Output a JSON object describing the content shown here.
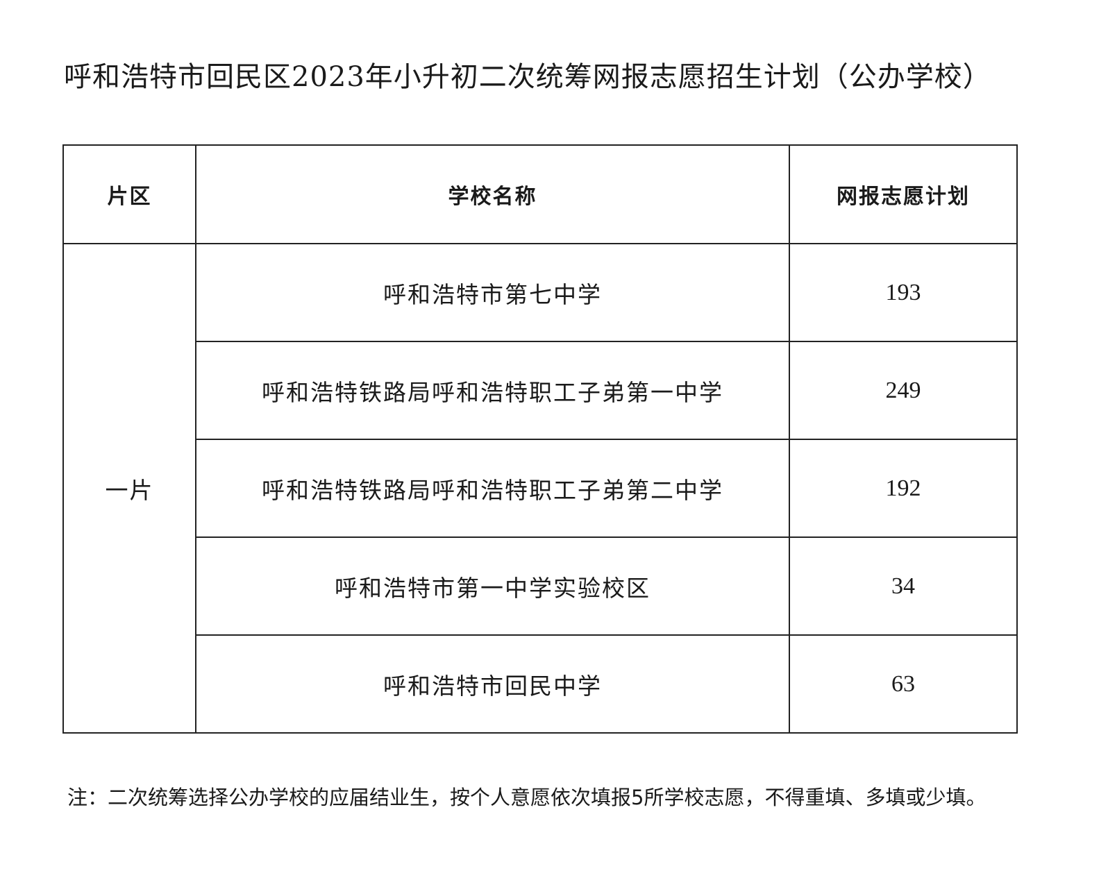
{
  "title": "呼和浩特市回民区2023年小升初二次统筹网报志愿招生计划（公办学校）",
  "table": {
    "headers": [
      "片区",
      "学校名称",
      "网报志愿计划"
    ],
    "district": "一片",
    "rows": [
      {
        "school": "呼和浩特市第七中学",
        "plan": "193"
      },
      {
        "school": "呼和浩特铁路局呼和浩特职工子弟第一中学",
        "plan": "249"
      },
      {
        "school": "呼和浩特铁路局呼和浩特职工子弟第二中学",
        "plan": "192"
      },
      {
        "school": "呼和浩特市第一中学实验校区",
        "plan": "34"
      },
      {
        "school": "呼和浩特市回民中学",
        "plan": "63"
      }
    ]
  },
  "note": "注：二次统筹选择公办学校的应届结业生，按个人意愿依次填报5所学校志愿，不得重填、多填或少填。"
}
